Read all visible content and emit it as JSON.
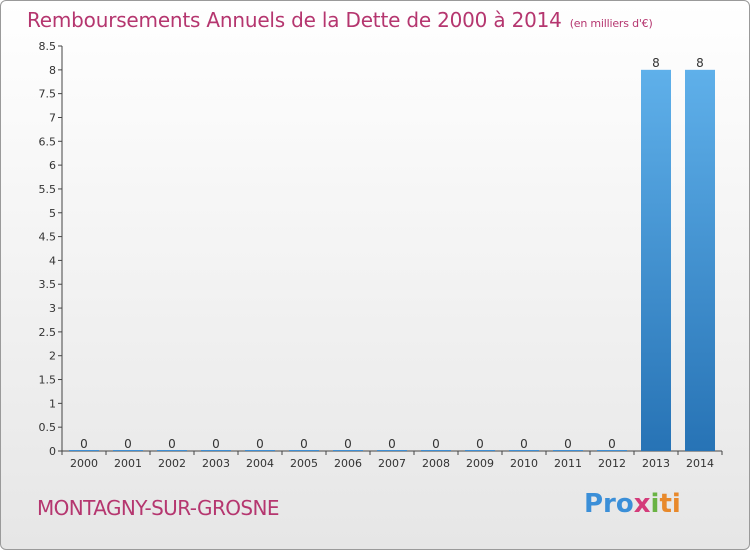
{
  "chart_data": {
    "type": "bar",
    "title": "Remboursements Annuels de la Dette de 2000 à 2014",
    "subtitle": "(en milliers d'€)",
    "categories": [
      "2000",
      "2001",
      "2002",
      "2003",
      "2004",
      "2005",
      "2006",
      "2007",
      "2008",
      "2009",
      "2010",
      "2011",
      "2012",
      "2013",
      "2014"
    ],
    "values": [
      0,
      0,
      0,
      0,
      0,
      0,
      0,
      0,
      0,
      0,
      0,
      0,
      0,
      8,
      8
    ],
    "data_labels": [
      "0",
      "0",
      "0",
      "0",
      "0",
      "0",
      "0",
      "0",
      "0",
      "0",
      "0",
      "0",
      "0",
      "8",
      "8"
    ],
    "y_ticks": [
      "0",
      "0.5",
      "1",
      "1.5",
      "2",
      "2.5",
      "3",
      "3.5",
      "4",
      "4.5",
      "5",
      "5.5",
      "6",
      "6.5",
      "7",
      "7.5",
      "8",
      "8.5"
    ],
    "ylim": [
      0,
      8.5
    ],
    "xlabel": "",
    "ylabel": "",
    "bar_color": "#3f8fd4"
  },
  "location": "MONTAGNY-SUR-GROSNE",
  "brand": {
    "name": "Proxiti",
    "letters": [
      "Pro",
      "x",
      "i",
      "ti"
    ]
  }
}
